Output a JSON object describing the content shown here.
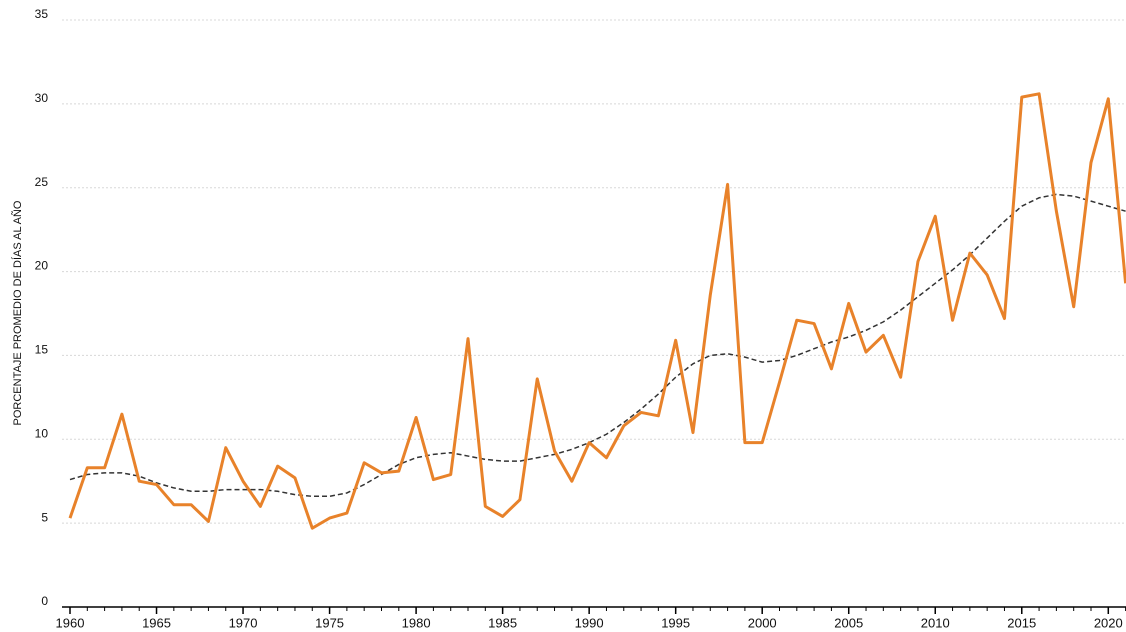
{
  "chart_data": {
    "type": "line",
    "y_label": "PORCENTAJE PROMEDIO DE DÍAS AL AÑO",
    "x": [
      1960,
      1961,
      1962,
      1963,
      1964,
      1965,
      1966,
      1967,
      1968,
      1969,
      1970,
      1971,
      1972,
      1973,
      1974,
      1975,
      1976,
      1977,
      1978,
      1979,
      1980,
      1981,
      1982,
      1983,
      1984,
      1985,
      1986,
      1987,
      1988,
      1989,
      1990,
      1991,
      1992,
      1993,
      1994,
      1995,
      1996,
      1997,
      1998,
      1999,
      2000,
      2001,
      2002,
      2003,
      2004,
      2005,
      2006,
      2007,
      2008,
      2009,
      2010,
      2011,
      2012,
      2013,
      2014,
      2015,
      2016,
      2017,
      2018,
      2019,
      2020,
      2021
    ],
    "series": [
      {
        "color": "#e8822a",
        "style": "solid",
        "values": [
          5.3,
          8.3,
          8.3,
          11.5,
          7.5,
          7.3,
          6.1,
          6.1,
          5.1,
          9.5,
          7.5,
          6.0,
          8.4,
          7.7,
          4.7,
          5.3,
          5.6,
          8.6,
          8.0,
          8.1,
          11.3,
          7.6,
          7.9,
          16.0,
          6.0,
          5.4,
          6.4,
          13.6,
          9.3,
          7.5,
          9.8,
          8.9,
          10.8,
          11.6,
          11.4,
          15.9,
          10.4,
          18.6,
          25.2,
          9.8,
          9.8,
          13.4,
          17.1,
          16.9,
          14.2,
          18.1,
          15.2,
          16.2,
          13.7,
          20.6,
          23.3,
          17.1,
          21.1,
          19.8,
          17.2,
          30.4,
          30.6,
          23.6,
          17.9,
          26.5,
          30.3,
          19.3
        ]
      },
      {
        "color": "#333333",
        "style": "dashed",
        "values": [
          7.6,
          7.9,
          8.0,
          8.0,
          7.8,
          7.4,
          7.1,
          6.9,
          6.9,
          7.0,
          7.0,
          7.0,
          6.9,
          6.7,
          6.6,
          6.6,
          6.8,
          7.3,
          7.9,
          8.5,
          8.9,
          9.1,
          9.2,
          9.0,
          8.8,
          8.7,
          8.7,
          8.9,
          9.1,
          9.4,
          9.8,
          10.3,
          11.0,
          11.8,
          12.7,
          13.7,
          14.5,
          15.0,
          15.1,
          14.9,
          14.6,
          14.7,
          15.0,
          15.4,
          15.8,
          16.1,
          16.5,
          17.0,
          17.7,
          18.5,
          19.3,
          20.1,
          21.0,
          22.0,
          23.0,
          23.9,
          24.4,
          24.6,
          24.5,
          24.2,
          23.9,
          23.6
        ]
      }
    ],
    "xlim": [
      1960,
      2021
    ],
    "xticks": [
      1960,
      1965,
      1970,
      1975,
      1980,
      1985,
      1990,
      1995,
      2000,
      2005,
      2010,
      2015,
      2020
    ],
    "ylim": [
      0,
      35
    ],
    "yticks": [
      0,
      5,
      10,
      15,
      20,
      25,
      30,
      35
    ],
    "grid": true
  }
}
